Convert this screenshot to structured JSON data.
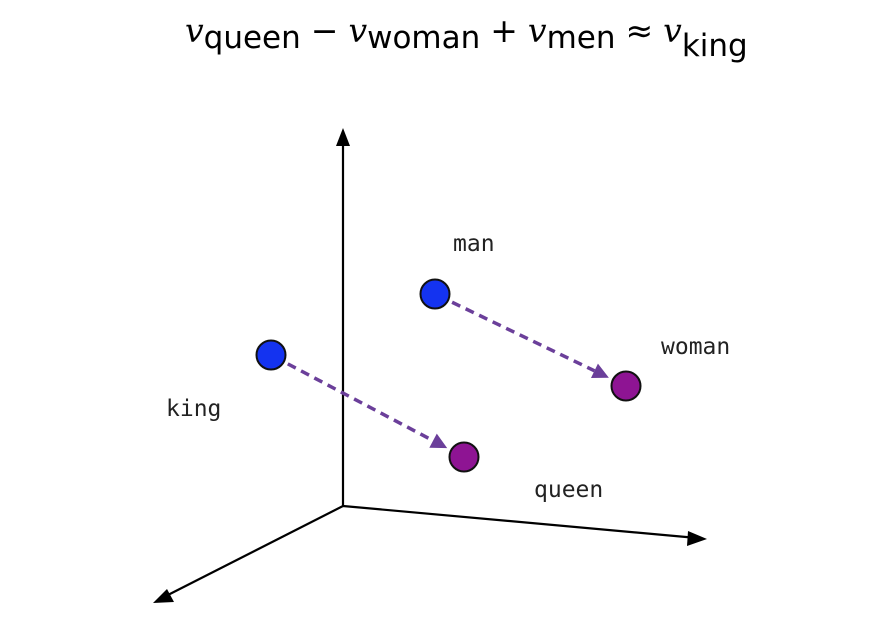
{
  "equation": {
    "v": "v",
    "term1": "queen",
    "op1": "−",
    "term2": "woman",
    "op2": "+",
    "term3": "men",
    "op3": "≈",
    "term4": "king"
  },
  "points": [
    {
      "key": "man",
      "label": "man",
      "color": "#1433f0"
    },
    {
      "key": "woman",
      "label": "woman",
      "color": "#8e1493"
    },
    {
      "key": "king",
      "label": "king",
      "color": "#1433f0"
    },
    {
      "key": "queen",
      "label": "queen",
      "color": "#8e1493"
    }
  ],
  "arrow_color": "#6b3f9a",
  "axis_color": "#000000"
}
